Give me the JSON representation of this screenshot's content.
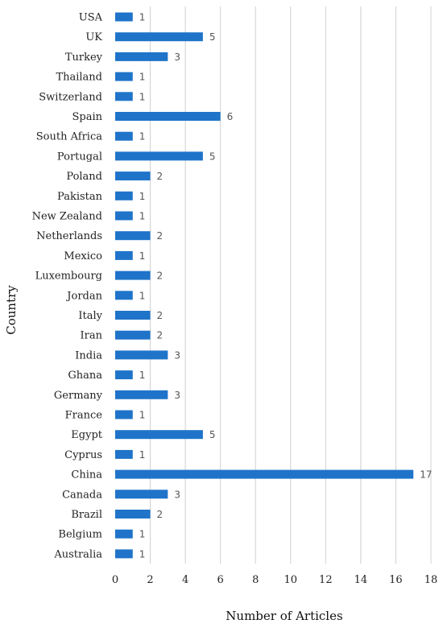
{
  "chart_data": {
    "type": "bar",
    "orientation": "horizontal",
    "xlabel": "Number of Articles",
    "ylabel": "Country",
    "xlim": [
      0,
      18
    ],
    "xticks": [
      0,
      2,
      4,
      6,
      8,
      10,
      12,
      14,
      16,
      18
    ],
    "grid": "vertical",
    "legend": "none",
    "bar_color": "#1f74c9",
    "categories": [
      "USA",
      "UK",
      "Turkey",
      "Thailand",
      "Switzerland",
      "Spain",
      "South Africa",
      "Portugal",
      "Poland",
      "Pakistan",
      "New Zealand",
      "Netherlands",
      "Mexico",
      "Luxembourg",
      "Jordan",
      "Italy",
      "Iran",
      "India",
      "Ghana",
      "Germany",
      "France",
      "Egypt",
      "Cyprus",
      "China",
      "Canada",
      "Brazil",
      "Belgium",
      "Australia"
    ],
    "values": [
      1,
      5,
      3,
      1,
      1,
      6,
      1,
      5,
      2,
      1,
      1,
      2,
      1,
      2,
      1,
      2,
      2,
      3,
      1,
      3,
      1,
      5,
      1,
      17,
      3,
      2,
      1,
      1
    ]
  }
}
